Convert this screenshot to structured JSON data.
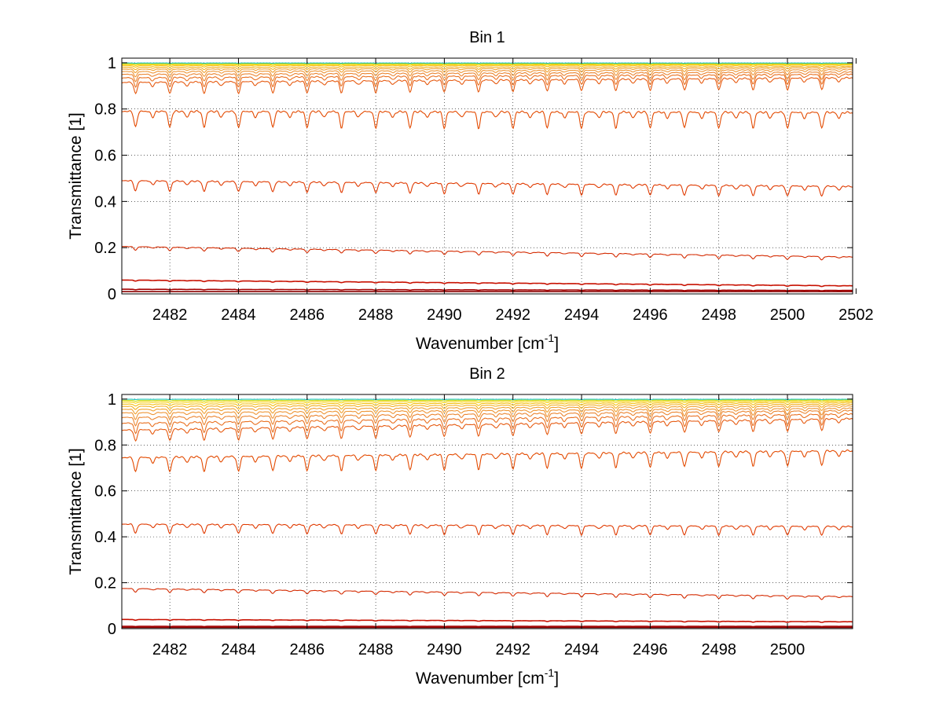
{
  "chart_data": [
    {
      "type": "line",
      "title": "Bin 1",
      "xlabel_main": "Wavenumber [cm",
      "xlabel_sup": "-1",
      "xlabel_end": "]",
      "ylabel": "Transmittance [1]",
      "xlim": [
        2480.6,
        2501.9
      ],
      "ylim": [
        0,
        1.02
      ],
      "xticks": [
        2482,
        2484,
        2486,
        2488,
        2490,
        2492,
        2494,
        2496,
        2498,
        2500,
        2502
      ],
      "xtick_labels": [
        "2482",
        "2484",
        "2486",
        "2488",
        "2490",
        "2492",
        "2494",
        "2496",
        "2498",
        "2500",
        "2502"
      ],
      "yticks": [
        0,
        0.2,
        0.4,
        0.6,
        0.8,
        1
      ],
      "ytick_labels": [
        "0",
        "0.2",
        "0.4",
        "0.6",
        "0.8",
        "1"
      ],
      "grid": true,
      "line_spacing_cm1": 1.0,
      "line_start_cm1": 2481.0,
      "series": [
        {
          "start": 0.01,
          "end": 0.01,
          "depth": 0.0,
          "color": "#8b0000"
        },
        {
          "start": 0.02,
          "end": 0.015,
          "depth": 0.002,
          "color": "#a40000"
        },
        {
          "start": 0.06,
          "end": 0.035,
          "depth": 0.004,
          "color": "#c81000"
        },
        {
          "start": 0.205,
          "end": 0.16,
          "depth": 0.015,
          "color": "#d42a00"
        },
        {
          "start": 0.49,
          "end": 0.465,
          "depth": 0.045,
          "color": "#e03a00"
        },
        {
          "start": 0.79,
          "end": 0.785,
          "depth": 0.07,
          "color": "#e34a00"
        },
        {
          "start": 0.915,
          "end": 0.935,
          "depth": 0.05,
          "color": "#e65a10"
        },
        {
          "start": 0.935,
          "end": 0.95,
          "depth": 0.04,
          "color": "#e97020"
        },
        {
          "start": 0.95,
          "end": 0.96,
          "depth": 0.03,
          "color": "#eb8530"
        },
        {
          "start": 0.962,
          "end": 0.97,
          "depth": 0.022,
          "color": "#ee9535"
        },
        {
          "start": 0.972,
          "end": 0.978,
          "depth": 0.015,
          "color": "#f0a030"
        },
        {
          "start": 0.98,
          "end": 0.984,
          "depth": 0.01,
          "color": "#f3b020"
        },
        {
          "start": 0.987,
          "end": 0.99,
          "depth": 0.006,
          "color": "#f5c010"
        },
        {
          "start": 0.992,
          "end": 0.994,
          "depth": 0.004,
          "color": "#f7d000"
        },
        {
          "start": 0.996,
          "end": 0.997,
          "depth": 0.002,
          "color": "#c8d800"
        },
        {
          "start": 0.999,
          "end": 0.999,
          "depth": 0.001,
          "color": "#20c8c8"
        }
      ]
    },
    {
      "type": "line",
      "title": "Bin 2",
      "xlabel_main": "Wavenumber [cm",
      "xlabel_sup": "-1",
      "xlabel_end": "]",
      "ylabel": "Transmittance [1]",
      "xlim": [
        2480.6,
        2501.9
      ],
      "ylim": [
        0,
        1.02
      ],
      "xticks": [
        2482,
        2484,
        2486,
        2488,
        2490,
        2492,
        2494,
        2496,
        2498,
        2500
      ],
      "xtick_labels": [
        "2482",
        "2484",
        "2486",
        "2488",
        "2490",
        "2492",
        "2494",
        "2496",
        "2498",
        "2500"
      ],
      "yticks": [
        0,
        0.2,
        0.4,
        0.6,
        0.8,
        1
      ],
      "ytick_labels": [
        "0",
        "0.2",
        "0.4",
        "0.6",
        "0.8",
        "1"
      ],
      "grid": true,
      "line_spacing_cm1": 1.0,
      "line_start_cm1": 2481.0,
      "series": [
        {
          "start": 0.005,
          "end": 0.005,
          "depth": 0.0,
          "color": "#8b0000"
        },
        {
          "start": 0.01,
          "end": 0.01,
          "depth": 0.001,
          "color": "#a40000"
        },
        {
          "start": 0.04,
          "end": 0.03,
          "depth": 0.003,
          "color": "#c81000"
        },
        {
          "start": 0.175,
          "end": 0.14,
          "depth": 0.015,
          "color": "#d42a00"
        },
        {
          "start": 0.455,
          "end": 0.445,
          "depth": 0.04,
          "color": "#e03a00"
        },
        {
          "start": 0.745,
          "end": 0.775,
          "depth": 0.065,
          "color": "#e34a00"
        },
        {
          "start": 0.865,
          "end": 0.915,
          "depth": 0.05,
          "color": "#e65a10"
        },
        {
          "start": 0.895,
          "end": 0.935,
          "depth": 0.045,
          "color": "#e97020"
        },
        {
          "start": 0.92,
          "end": 0.95,
          "depth": 0.035,
          "color": "#eb8530"
        },
        {
          "start": 0.94,
          "end": 0.96,
          "depth": 0.028,
          "color": "#ee9535"
        },
        {
          "start": 0.955,
          "end": 0.97,
          "depth": 0.02,
          "color": "#f0a030"
        },
        {
          "start": 0.968,
          "end": 0.978,
          "depth": 0.014,
          "color": "#f3b020"
        },
        {
          "start": 0.978,
          "end": 0.985,
          "depth": 0.009,
          "color": "#f5c010"
        },
        {
          "start": 0.987,
          "end": 0.991,
          "depth": 0.005,
          "color": "#f7d000"
        },
        {
          "start": 0.994,
          "end": 0.996,
          "depth": 0.003,
          "color": "#c8d800"
        },
        {
          "start": 0.999,
          "end": 0.999,
          "depth": 0.001,
          "color": "#20c8c8"
        }
      ]
    }
  ]
}
